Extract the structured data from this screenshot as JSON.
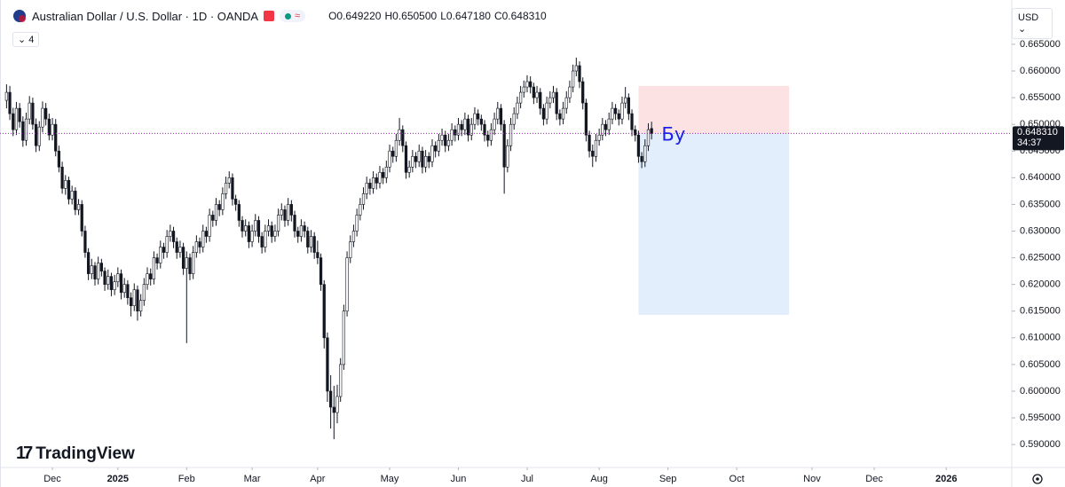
{
  "chart_data": {
    "type": "candlestick",
    "title": "Australian Dollar / U.S. Dollar · 1D · OANDA",
    "legend_values": [
      {
        "label": "O",
        "text": "0.649220"
      },
      {
        "label": "H",
        "text": "0.650500"
      },
      {
        "label": "L",
        "text": "0.647180"
      },
      {
        "label": "C",
        "text": "0.648310"
      }
    ],
    "indicator_count": "4",
    "currency": "USD",
    "brand": "TradingView",
    "annotation": "Бу",
    "last_price_label": "0.648310",
    "countdown": "34:37",
    "up_color": "#ffffff",
    "down_color": "#131722",
    "border_color": "#131722",
    "price_line_color": "#9c27b0",
    "position": {
      "entry": 0.6483,
      "stop": 0.6572,
      "target": 0.6143,
      "start": 193,
      "end": 239,
      "stop_color": "#fde2e4",
      "target_color": "#e3eefc"
    },
    "xlim": [
      -2,
      307
    ],
    "xticks": [
      {
        "value": 14,
        "label": "Dec"
      },
      {
        "value": 34,
        "label": "2025"
      },
      {
        "value": 55,
        "label": "Feb"
      },
      {
        "value": 75,
        "label": "Mar"
      },
      {
        "value": 95,
        "label": "Apr"
      },
      {
        "value": 117,
        "label": "May"
      },
      {
        "value": 138,
        "label": "Jun"
      },
      {
        "value": 159,
        "label": "Jul"
      },
      {
        "value": 181,
        "label": "Aug"
      },
      {
        "value": 202,
        "label": "Sep"
      },
      {
        "value": 223,
        "label": "Oct"
      },
      {
        "value": 246,
        "label": "Nov"
      },
      {
        "value": 265,
        "label": "Dec"
      },
      {
        "value": 287,
        "label": "2026"
      }
    ],
    "ylim": [
      0.5857,
      0.6733
    ],
    "yticks": [
      {
        "value": 0.59,
        "label": "0.590000"
      },
      {
        "value": 0.595,
        "label": "0.595000"
      },
      {
        "value": 0.6,
        "label": "0.600000"
      },
      {
        "value": 0.605,
        "label": "0.605000"
      },
      {
        "value": 0.61,
        "label": "0.610000"
      },
      {
        "value": 0.615,
        "label": "0.615000"
      },
      {
        "value": 0.62,
        "label": "0.620000"
      },
      {
        "value": 0.625,
        "label": "0.625000"
      },
      {
        "value": 0.63,
        "label": "0.630000"
      },
      {
        "value": 0.635,
        "label": "0.635000"
      },
      {
        "value": 0.64,
        "label": "0.640000"
      },
      {
        "value": 0.645,
        "label": "0.645000"
      },
      {
        "value": 0.65,
        "label": "0.650000"
      },
      {
        "value": 0.655,
        "label": "0.655000"
      },
      {
        "value": 0.66,
        "label": "0.660000"
      },
      {
        "value": 0.665,
        "label": "0.665000"
      }
    ],
    "ohlc": [
      [
        0.6545,
        0.6575,
        0.653,
        0.656
      ],
      [
        0.656,
        0.6572,
        0.6508,
        0.652
      ],
      [
        0.652,
        0.6531,
        0.6478,
        0.649
      ],
      [
        0.649,
        0.6542,
        0.648,
        0.653
      ],
      [
        0.653,
        0.654,
        0.6494,
        0.6505
      ],
      [
        0.6505,
        0.6515,
        0.6458,
        0.647
      ],
      [
        0.647,
        0.6522,
        0.646,
        0.651
      ],
      [
        0.651,
        0.6553,
        0.65,
        0.654
      ],
      [
        0.654,
        0.655,
        0.649,
        0.65
      ],
      [
        0.65,
        0.6511,
        0.6448,
        0.646
      ],
      [
        0.646,
        0.6506,
        0.645,
        0.6495
      ],
      [
        0.6495,
        0.6543,
        0.6485,
        0.653
      ],
      [
        0.653,
        0.654,
        0.6498,
        0.651
      ],
      [
        0.651,
        0.652,
        0.647,
        0.648
      ],
      [
        0.648,
        0.6512,
        0.647,
        0.65
      ],
      [
        0.65,
        0.651,
        0.644,
        0.645
      ],
      [
        0.645,
        0.646,
        0.641,
        0.642
      ],
      [
        0.642,
        0.643,
        0.637,
        0.638
      ],
      [
        0.638,
        0.6405,
        0.6368,
        0.6395
      ],
      [
        0.6395,
        0.6402,
        0.635,
        0.636
      ],
      [
        0.636,
        0.6385,
        0.635,
        0.6375
      ],
      [
        0.6375,
        0.6382,
        0.633,
        0.634
      ],
      [
        0.634,
        0.636,
        0.633,
        0.635
      ],
      [
        0.635,
        0.6358,
        0.629,
        0.63
      ],
      [
        0.63,
        0.631,
        0.625,
        0.626
      ],
      [
        0.626,
        0.6268,
        0.6208,
        0.622
      ],
      [
        0.622,
        0.6248,
        0.621,
        0.6235
      ],
      [
        0.6235,
        0.6242,
        0.6198,
        0.621
      ],
      [
        0.621,
        0.6252,
        0.62,
        0.624
      ],
      [
        0.624,
        0.6248,
        0.6215,
        0.6225
      ],
      [
        0.6225,
        0.6232,
        0.6188,
        0.62
      ],
      [
        0.62,
        0.6228,
        0.619,
        0.6215
      ],
      [
        0.6215,
        0.6222,
        0.6178,
        0.619
      ],
      [
        0.619,
        0.6218,
        0.618,
        0.6205
      ],
      [
        0.6205,
        0.6232,
        0.6195,
        0.622
      ],
      [
        0.622,
        0.6228,
        0.6172,
        0.6185
      ],
      [
        0.6185,
        0.6212,
        0.6175,
        0.62
      ],
      [
        0.62,
        0.6208,
        0.6162,
        0.6175
      ],
      [
        0.6175,
        0.6185,
        0.614,
        0.616
      ],
      [
        0.616,
        0.6202,
        0.615,
        0.619
      ],
      [
        0.619,
        0.6198,
        0.6132,
        0.615
      ],
      [
        0.615,
        0.6182,
        0.614,
        0.617
      ],
      [
        0.617,
        0.6212,
        0.616,
        0.62
      ],
      [
        0.62,
        0.6232,
        0.619,
        0.622
      ],
      [
        0.622,
        0.623,
        0.6198,
        0.621
      ],
      [
        0.621,
        0.6262,
        0.62,
        0.625
      ],
      [
        0.625,
        0.6258,
        0.6228,
        0.624
      ],
      [
        0.624,
        0.6282,
        0.623,
        0.627
      ],
      [
        0.627,
        0.6278,
        0.6248,
        0.626
      ],
      [
        0.626,
        0.6302,
        0.625,
        0.629
      ],
      [
        0.629,
        0.6312,
        0.628,
        0.63
      ],
      [
        0.63,
        0.6308,
        0.6268,
        0.628
      ],
      [
        0.628,
        0.6288,
        0.6248,
        0.626
      ],
      [
        0.626,
        0.6282,
        0.625,
        0.627
      ],
      [
        0.627,
        0.6278,
        0.6218,
        0.623
      ],
      [
        0.623,
        0.6262,
        0.609,
        0.625
      ],
      [
        0.625,
        0.6258,
        0.6208,
        0.622
      ],
      [
        0.622,
        0.6272,
        0.621,
        0.626
      ],
      [
        0.626,
        0.6292,
        0.625,
        0.628
      ],
      [
        0.628,
        0.6288,
        0.6258,
        0.627
      ],
      [
        0.627,
        0.6312,
        0.626,
        0.63
      ],
      [
        0.63,
        0.6308,
        0.6278,
        0.629
      ],
      [
        0.629,
        0.6342,
        0.628,
        0.633
      ],
      [
        0.633,
        0.6338,
        0.6308,
        0.632
      ],
      [
        0.632,
        0.6362,
        0.631,
        0.635
      ],
      [
        0.635,
        0.6358,
        0.6328,
        0.634
      ],
      [
        0.634,
        0.6382,
        0.633,
        0.637
      ],
      [
        0.637,
        0.6402,
        0.636,
        0.639
      ],
      [
        0.639,
        0.6412,
        0.638,
        0.64
      ],
      [
        0.64,
        0.6408,
        0.6348,
        0.636
      ],
      [
        0.636,
        0.6368,
        0.6338,
        0.635
      ],
      [
        0.635,
        0.6358,
        0.6308,
        0.632
      ],
      [
        0.632,
        0.6328,
        0.6288,
        0.63
      ],
      [
        0.63,
        0.6322,
        0.629,
        0.631
      ],
      [
        0.631,
        0.6318,
        0.6268,
        0.628
      ],
      [
        0.628,
        0.6312,
        0.627,
        0.63
      ],
      [
        0.63,
        0.6332,
        0.629,
        0.632
      ],
      [
        0.632,
        0.6328,
        0.6278,
        0.629
      ],
      [
        0.629,
        0.6298,
        0.6258,
        0.627
      ],
      [
        0.627,
        0.6312,
        0.626,
        0.63
      ],
      [
        0.63,
        0.6322,
        0.629,
        0.631
      ],
      [
        0.631,
        0.6318,
        0.6278,
        0.629
      ],
      [
        0.629,
        0.6312,
        0.628,
        0.63
      ],
      [
        0.63,
        0.6342,
        0.629,
        0.633
      ],
      [
        0.633,
        0.6352,
        0.632,
        0.634
      ],
      [
        0.634,
        0.6348,
        0.6308,
        0.632
      ],
      [
        0.632,
        0.6362,
        0.631,
        0.635
      ],
      [
        0.635,
        0.6358,
        0.6318,
        0.633
      ],
      [
        0.633,
        0.6338,
        0.6288,
        0.63
      ],
      [
        0.63,
        0.6308,
        0.6278,
        0.629
      ],
      [
        0.629,
        0.6322,
        0.628,
        0.631
      ],
      [
        0.631,
        0.6318,
        0.6288,
        0.63
      ],
      [
        0.63,
        0.6308,
        0.6258,
        0.627
      ],
      [
        0.627,
        0.6302,
        0.626,
        0.629
      ],
      [
        0.629,
        0.6298,
        0.6248,
        0.626
      ],
      [
        0.626,
        0.6282,
        0.6238,
        0.625
      ],
      [
        0.625,
        0.6258,
        0.6188,
        0.62
      ],
      [
        0.62,
        0.6208,
        0.608,
        0.61
      ],
      [
        0.61,
        0.611,
        0.598,
        0.6
      ],
      [
        0.6,
        0.603,
        0.593,
        0.597
      ],
      [
        0.597,
        0.601,
        0.591,
        0.596
      ],
      [
        0.596,
        0.6012,
        0.594,
        0.599
      ],
      [
        0.599,
        0.6062,
        0.598,
        0.605
      ],
      [
        0.605,
        0.6162,
        0.604,
        0.615
      ],
      [
        0.615,
        0.6262,
        0.614,
        0.625
      ],
      [
        0.625,
        0.6292,
        0.624,
        0.628
      ],
      [
        0.628,
        0.6312,
        0.627,
        0.63
      ],
      [
        0.63,
        0.6342,
        0.629,
        0.633
      ],
      [
        0.633,
        0.6362,
        0.632,
        0.635
      ],
      [
        0.635,
        0.6382,
        0.634,
        0.637
      ],
      [
        0.637,
        0.6402,
        0.636,
        0.639
      ],
      [
        0.639,
        0.6398,
        0.6368,
        0.638
      ],
      [
        0.638,
        0.6412,
        0.637,
        0.64
      ],
      [
        0.64,
        0.6408,
        0.6378,
        0.639
      ],
      [
        0.639,
        0.6422,
        0.638,
        0.641
      ],
      [
        0.641,
        0.6418,
        0.6388,
        0.64
      ],
      [
        0.64,
        0.6432,
        0.639,
        0.642
      ],
      [
        0.642,
        0.6462,
        0.641,
        0.645
      ],
      [
        0.645,
        0.6458,
        0.6428,
        0.644
      ],
      [
        0.644,
        0.6482,
        0.643,
        0.647
      ],
      [
        0.647,
        0.6512,
        0.646,
        0.649
      ],
      [
        0.649,
        0.6498,
        0.6448,
        0.646
      ],
      [
        0.646,
        0.6468,
        0.6398,
        0.641
      ],
      [
        0.641,
        0.6432,
        0.64,
        0.642
      ],
      [
        0.642,
        0.6452,
        0.641,
        0.644
      ],
      [
        0.644,
        0.6448,
        0.6418,
        0.643
      ],
      [
        0.643,
        0.6462,
        0.642,
        0.645
      ],
      [
        0.645,
        0.6458,
        0.6408,
        0.642
      ],
      [
        0.642,
        0.6452,
        0.641,
        0.644
      ],
      [
        0.644,
        0.6448,
        0.6418,
        0.643
      ],
      [
        0.643,
        0.6472,
        0.642,
        0.646
      ],
      [
        0.646,
        0.6468,
        0.6438,
        0.645
      ],
      [
        0.645,
        0.6482,
        0.644,
        0.647
      ],
      [
        0.647,
        0.6492,
        0.646,
        0.648
      ],
      [
        0.648,
        0.6488,
        0.6448,
        0.646
      ],
      [
        0.646,
        0.6482,
        0.645,
        0.647
      ],
      [
        0.647,
        0.6502,
        0.646,
        0.649
      ],
      [
        0.649,
        0.6498,
        0.6468,
        0.648
      ],
      [
        0.648,
        0.6512,
        0.647,
        0.65
      ],
      [
        0.65,
        0.6508,
        0.6478,
        0.649
      ],
      [
        0.649,
        0.6522,
        0.648,
        0.651
      ],
      [
        0.651,
        0.6518,
        0.6468,
        0.648
      ],
      [
        0.648,
        0.6512,
        0.647,
        0.65
      ],
      [
        0.65,
        0.6532,
        0.649,
        0.652
      ],
      [
        0.652,
        0.6528,
        0.6498,
        0.651
      ],
      [
        0.651,
        0.6518,
        0.6488,
        0.65
      ],
      [
        0.65,
        0.6508,
        0.6468,
        0.648
      ],
      [
        0.648,
        0.6488,
        0.6458,
        0.647
      ],
      [
        0.647,
        0.6502,
        0.646,
        0.649
      ],
      [
        0.649,
        0.6522,
        0.648,
        0.651
      ],
      [
        0.651,
        0.6542,
        0.65,
        0.653
      ],
      [
        0.653,
        0.6538,
        0.6488,
        0.65
      ],
      [
        0.65,
        0.6508,
        0.637,
        0.642
      ],
      [
        0.642,
        0.6472,
        0.641,
        0.646
      ],
      [
        0.646,
        0.6512,
        0.645,
        0.65
      ],
      [
        0.65,
        0.6532,
        0.649,
        0.652
      ],
      [
        0.652,
        0.6552,
        0.651,
        0.654
      ],
      [
        0.654,
        0.6572,
        0.653,
        0.656
      ],
      [
        0.656,
        0.6582,
        0.655,
        0.657
      ],
      [
        0.657,
        0.6592,
        0.656,
        0.658
      ],
      [
        0.658,
        0.659,
        0.6558,
        0.657
      ],
      [
        0.657,
        0.6578,
        0.6538,
        0.655
      ],
      [
        0.655,
        0.6572,
        0.654,
        0.656
      ],
      [
        0.656,
        0.6568,
        0.6518,
        0.653
      ],
      [
        0.653,
        0.6538,
        0.6498,
        0.651
      ],
      [
        0.651,
        0.6552,
        0.65,
        0.654
      ],
      [
        0.654,
        0.6562,
        0.653,
        0.655
      ],
      [
        0.655,
        0.6572,
        0.654,
        0.656
      ],
      [
        0.656,
        0.6568,
        0.6508,
        0.652
      ],
      [
        0.652,
        0.6528,
        0.6498,
        0.651
      ],
      [
        0.651,
        0.6542,
        0.65,
        0.653
      ],
      [
        0.653,
        0.6562,
        0.652,
        0.655
      ],
      [
        0.655,
        0.6582,
        0.654,
        0.657
      ],
      [
        0.657,
        0.6612,
        0.656,
        0.66
      ],
      [
        0.66,
        0.6625,
        0.659,
        0.661
      ],
      [
        0.661,
        0.6618,
        0.6568,
        0.658
      ],
      [
        0.658,
        0.6588,
        0.6528,
        0.654
      ],
      [
        0.654,
        0.6548,
        0.6468,
        0.648
      ],
      [
        0.648,
        0.6488,
        0.6438,
        0.645
      ],
      [
        0.645,
        0.6462,
        0.642,
        0.644
      ],
      [
        0.644,
        0.6482,
        0.643,
        0.647
      ],
      [
        0.647,
        0.6492,
        0.646,
        0.648
      ],
      [
        0.648,
        0.6512,
        0.647,
        0.65
      ],
      [
        0.65,
        0.6508,
        0.6478,
        0.649
      ],
      [
        0.649,
        0.6522,
        0.648,
        0.651
      ],
      [
        0.651,
        0.6542,
        0.65,
        0.653
      ],
      [
        0.653,
        0.6538,
        0.6508,
        0.652
      ],
      [
        0.652,
        0.6528,
        0.6498,
        0.651
      ],
      [
        0.651,
        0.6552,
        0.65,
        0.654
      ],
      [
        0.654,
        0.657,
        0.653,
        0.655
      ],
      [
        0.655,
        0.6558,
        0.6508,
        0.652
      ],
      [
        0.652,
        0.6528,
        0.6478,
        0.649
      ],
      [
        0.649,
        0.6498,
        0.6468,
        0.648
      ],
      [
        0.648,
        0.6488,
        0.6428,
        0.644
      ],
      [
        0.644,
        0.6448,
        0.6418,
        0.643
      ],
      [
        0.643,
        0.6472,
        0.642,
        0.646
      ],
      [
        0.646,
        0.6502,
        0.645,
        0.649
      ],
      [
        0.64922,
        0.6505,
        0.64718,
        0.64831
      ]
    ]
  }
}
